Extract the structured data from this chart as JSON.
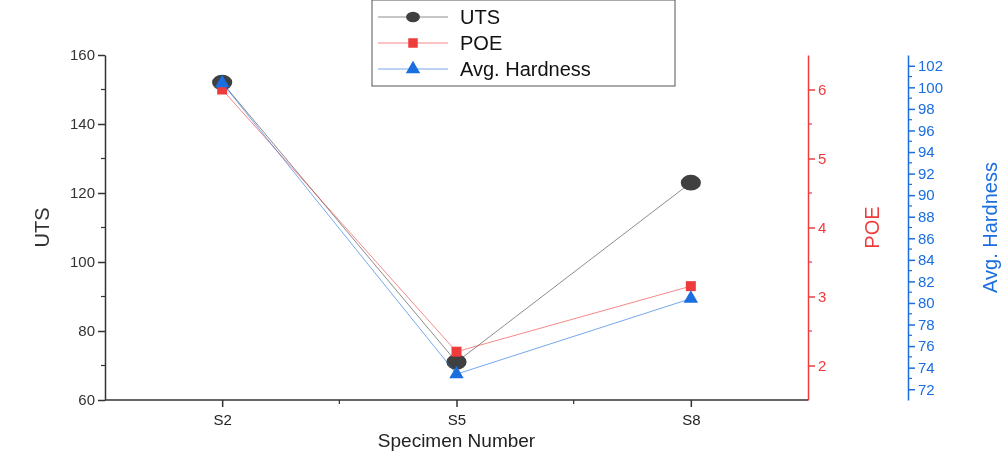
{
  "chart_data": {
    "type": "line",
    "xlabel": "Specimen Number",
    "ylabel": "UTS",
    "y2label": "POE",
    "y3label": "Avg. Hardness",
    "categories": [
      "S2",
      "S5",
      "S8"
    ],
    "ylim": [
      60,
      160
    ],
    "yticks": [
      60,
      80,
      100,
      120,
      140,
      160
    ],
    "y2lim": [
      1.5,
      6.5
    ],
    "y2ticks": [
      2,
      3,
      4,
      5,
      6
    ],
    "y3lim": [
      71,
      103
    ],
    "y3ticks": [
      72,
      74,
      76,
      78,
      80,
      82,
      84,
      86,
      88,
      90,
      92,
      94,
      96,
      98,
      100,
      102
    ],
    "legend": "top",
    "grid": false,
    "line_style": "solid",
    "series": [
      {
        "name": "UTS",
        "color": "#404040",
        "marker": "circle",
        "values": [
          152,
          71,
          123
        ]
      },
      {
        "name": "POE",
        "color": "#ee3b3b",
        "marker": "square",
        "axis": "y2",
        "values": [
          6.0,
          2.2,
          3.15
        ]
      },
      {
        "name": "Avg. Hardness",
        "color": "#1a6ee0",
        "marker": "triangle",
        "axis": "y3",
        "values": [
          100.4,
          73.4,
          80.4
        ]
      }
    ]
  }
}
